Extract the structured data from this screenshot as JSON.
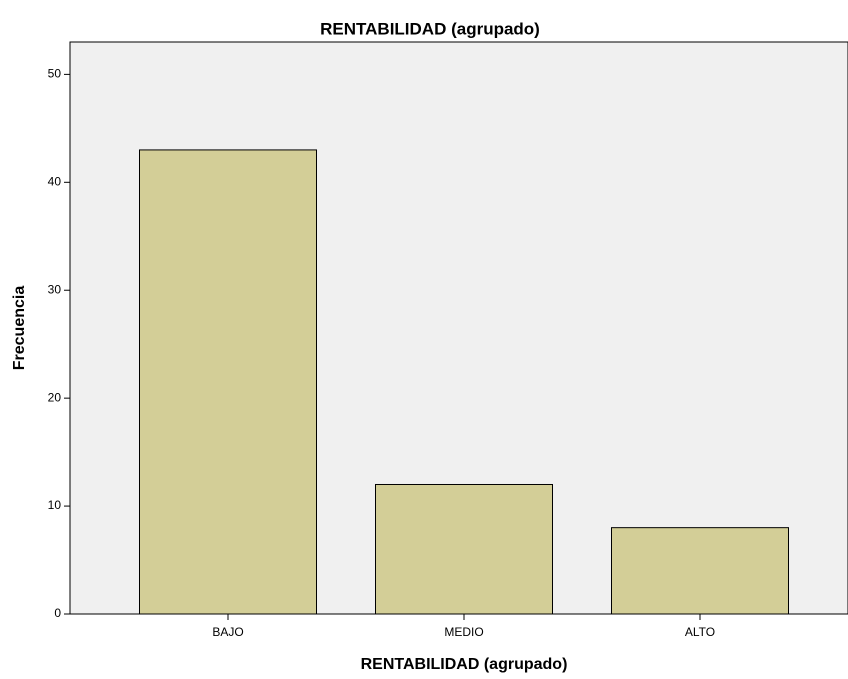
{
  "chart_data": {
    "type": "bar",
    "title": "RENTABILIDAD (agrupado)",
    "x_label": "RENTABILIDAD (agrupado)",
    "y_label": "Frecuencia",
    "categories": [
      "BAJO",
      "MEDIO",
      "ALTO"
    ],
    "values": [
      43,
      12,
      8
    ],
    "color": "#d3ce97",
    "ylim": [
      0,
      53
    ],
    "yticks": [
      0,
      10,
      20,
      30,
      40,
      50
    ],
    "grid": false
  }
}
